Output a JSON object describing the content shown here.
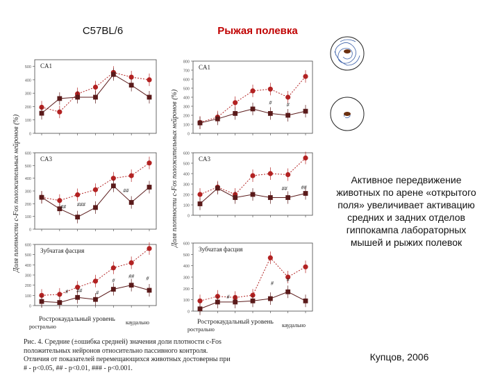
{
  "titles": {
    "left": "C57BL/6",
    "right": "Рыжая полевка"
  },
  "y_axis_label_left": "Доля плотности с-Fos положительных нейронов (%)",
  "y_axis_label_right": "Доля плотности с-Fos положительных нейронов (%)",
  "x_axis_label": "Рострокаудальный уровень",
  "x_end_labels": {
    "left": "рострально",
    "right": "каудально"
  },
  "caption": [
    "Рис. 4. Средние (±ошибка средней) значения доли плотности с-Fos",
    "положительных нейронов относительно пассивного контроля.",
    "Отличия от показателей перемещающихся животных достоверны при",
    "# - p<0.05, ## - p<0.01, ### - p<0.001."
  ],
  "description": "Активное передвижение животных по арене «открытого поля» увеличивает активацию средних и задних отделов гиппокампа лабораторных мышей и рыжих полевок",
  "author": "Купцов, 2006",
  "colors": {
    "active": "#b22222",
    "passive": "#5a1a1a",
    "title_right": "#c00000"
  },
  "chart_data": [
    {
      "type": "line",
      "region": "CA1",
      "species": "C57BL/6",
      "x": [
        1,
        2,
        3,
        4,
        5,
        6,
        7
      ],
      "ylim": [
        0,
        550
      ],
      "yticks": [
        0,
        100,
        200,
        300,
        400,
        500
      ],
      "tick_labels": [
        "0",
        "100",
        "200",
        "300",
        "400",
        "500"
      ],
      "series": [
        {
          "values": [
            195,
            160,
            295,
            345,
            455,
            420,
            400
          ]
        },
        {
          "values": [
            150,
            260,
            270,
            270,
            440,
            360,
            270
          ]
        }
      ],
      "marks": []
    },
    {
      "type": "line",
      "region": "CA3",
      "species": "C57BL/6",
      "x": [
        1,
        2,
        3,
        4,
        5,
        6,
        7
      ],
      "ylim": [
        0,
        600
      ],
      "yticks": [
        0,
        100,
        200,
        300,
        400,
        500,
        600
      ],
      "tick_labels": [
        "0",
        "100",
        "200",
        "300",
        "400",
        "500",
        "600"
      ],
      "series": [
        {
          "values": [
            250,
            225,
            270,
            310,
            400,
            420,
            520
          ]
        },
        {
          "values": [
            250,
            160,
            95,
            170,
            340,
            210,
            330
          ]
        }
      ],
      "marks": [
        {
          "text": "##",
          "x": 2.2,
          "y": 160
        },
        {
          "text": "###",
          "x": 3.2,
          "y": 180
        },
        {
          "text": "##",
          "x": 5.7,
          "y": 290
        }
      ]
    },
    {
      "type": "line",
      "region": "Зубчатая фасция",
      "species": "C57BL/6",
      "x": [
        1,
        2,
        3,
        4,
        5,
        6,
        7
      ],
      "ylim": [
        0,
        600
      ],
      "yticks": [
        0,
        100,
        200,
        300,
        400,
        500,
        600
      ],
      "tick_labels": [
        "0",
        "100",
        "200",
        "300",
        "400",
        "500",
        "600"
      ],
      "series": [
        {
          "values": [
            100,
            110,
            180,
            240,
            370,
            420,
            560
          ]
        },
        {
          "values": [
            40,
            30,
            80,
            60,
            160,
            200,
            150
          ]
        }
      ],
      "marks": [
        {
          "text": "#",
          "x": 2.4,
          "y": 120
        },
        {
          "text": "##",
          "x": 3.1,
          "y": 130
        },
        {
          "text": "#",
          "x": 4.1,
          "y": 110
        },
        {
          "text": "#",
          "x": 5,
          "y": 230
        },
        {
          "text": "##",
          "x": 6,
          "y": 270
        },
        {
          "text": "#",
          "x": 6.9,
          "y": 250
        }
      ]
    },
    {
      "type": "line",
      "region": "CA1",
      "species": "Рыжая полевка",
      "x": [
        1,
        2,
        3,
        4,
        5,
        6,
        7
      ],
      "ylim": [
        0,
        800
      ],
      "yticks": [
        0,
        100,
        200,
        300,
        400,
        500,
        600,
        700,
        800
      ],
      "tick_labels": [
        "0",
        "100",
        "200",
        "300",
        "400",
        "500",
        "600",
        "700",
        "800"
      ],
      "series": [
        {
          "values": [
            120,
            180,
            340,
            470,
            490,
            400,
            630
          ]
        },
        {
          "values": [
            115,
            160,
            220,
            270,
            220,
            200,
            245
          ]
        }
      ],
      "marks": [
        {
          "text": "#",
          "x": 5,
          "y": 320
        },
        {
          "text": "#",
          "x": 6,
          "y": 295
        }
      ]
    },
    {
      "type": "line",
      "region": "CA3",
      "species": "Рыжая полевка",
      "x": [
        1,
        2,
        3,
        4,
        5,
        6,
        7
      ],
      "ylim": [
        0,
        600
      ],
      "yticks": [
        0,
        100,
        200,
        300,
        400,
        500,
        600
      ],
      "tick_labels": [
        "0",
        "100",
        "200",
        "300",
        "400",
        "500",
        "600"
      ],
      "series": [
        {
          "values": [
            200,
            270,
            200,
            380,
            400,
            390,
            550
          ]
        },
        {
          "values": [
            110,
            260,
            170,
            200,
            170,
            170,
            210
          ]
        }
      ],
      "marks": [
        {
          "text": "##",
          "x": 5.8,
          "y": 240
        },
        {
          "text": "##",
          "x": 6.9,
          "y": 250
        }
      ]
    },
    {
      "type": "line",
      "region": "Зубчатая фасция",
      "species": "Рыжая полевка",
      "x": [
        1,
        2,
        3,
        4,
        5,
        6,
        7
      ],
      "ylim": [
        0,
        600
      ],
      "yticks": [
        0,
        100,
        200,
        300,
        400,
        500,
        600
      ],
      "tick_labels": [
        "0",
        "100",
        "200",
        "300",
        "400",
        "500",
        "600"
      ],
      "series": [
        {
          "values": [
            90,
            130,
            120,
            140,
            470,
            300,
            390
          ]
        },
        {
          "values": [
            20,
            80,
            80,
            90,
            110,
            170,
            90
          ]
        }
      ],
      "marks": [
        {
          "text": "#",
          "x": 2.6,
          "y": 110
        },
        {
          "text": "#",
          "x": 5.1,
          "y": 230
        },
        {
          "text": "#",
          "x": 6,
          "y": 260
        }
      ]
    }
  ]
}
